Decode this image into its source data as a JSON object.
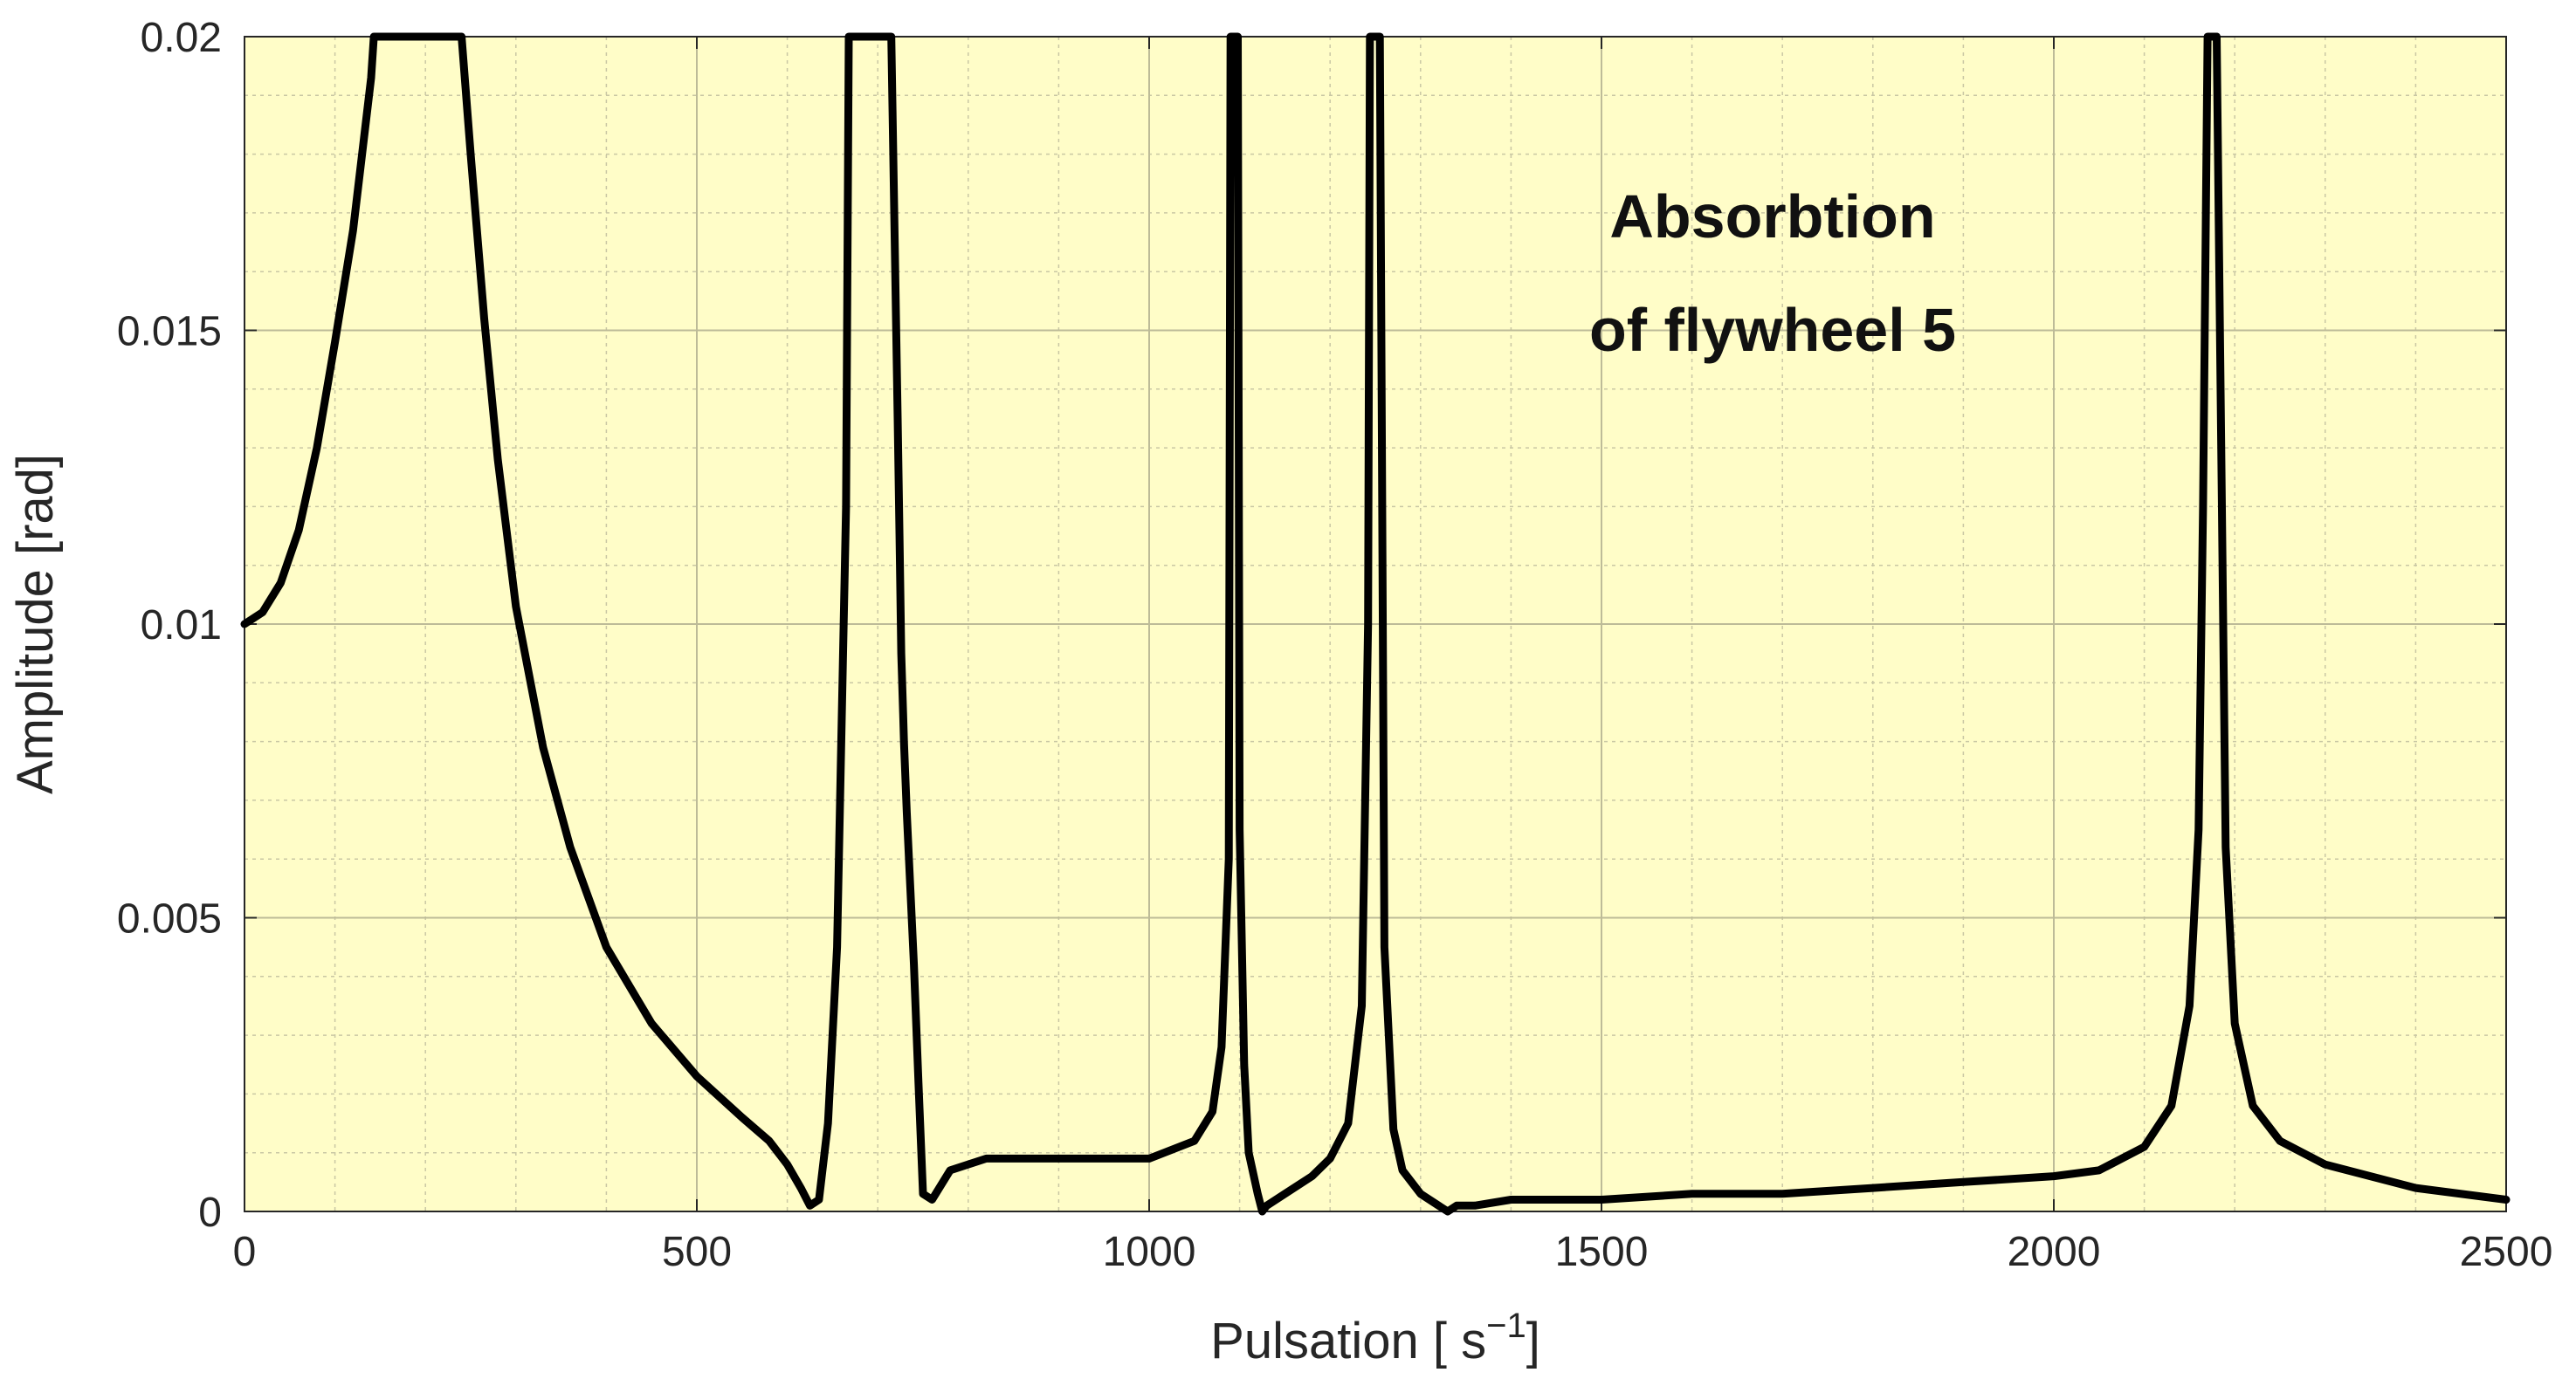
{
  "chart_data": {
    "type": "line",
    "title": "",
    "xlabel": "Pulsation [ s",
    "xlabel_sup": "−1",
    "xlabel_close": "]",
    "ylabel": "Amplitude [rad]",
    "xlim": [
      0,
      2500
    ],
    "ylim": [
      0,
      0.02
    ],
    "x_ticks": [
      0,
      500,
      1000,
      1500,
      2000,
      2500
    ],
    "y_ticks": [
      0,
      0.005,
      0.01,
      0.015,
      0.02
    ],
    "x_tick_labels": [
      "0",
      "500",
      "1000",
      "1500",
      "2000",
      "2500"
    ],
    "y_tick_labels": [
      "0",
      "0.005",
      "0.01",
      "0.015",
      "0.02"
    ],
    "grid": true,
    "minor_grid": true,
    "background_color": "#FFFDC8",
    "line_color": "#000000",
    "annotation_lines": [
      "Absorbtion",
      "of flywheel 5"
    ],
    "series": [
      {
        "x": [
          0,
          20,
          40,
          60,
          80,
          100,
          120,
          140,
          143,
          240,
          250,
          265,
          280,
          300,
          330,
          360,
          400,
          450,
          500,
          550,
          580,
          600,
          615,
          625,
          635,
          645,
          655,
          665,
          668,
          715,
          722,
          724,
          726,
          728,
          729,
          732,
          740,
          745,
          750,
          760,
          780,
          820,
          900,
          1000,
          1050,
          1070,
          1080,
          1088,
          1090,
          1098,
          1100,
          1105,
          1110,
          1120,
          1125,
          1130,
          1150,
          1180,
          1200,
          1220,
          1235,
          1242,
          1244,
          1255,
          1260,
          1270,
          1280,
          1300,
          1320,
          1330,
          1340,
          1360,
          1400,
          1500,
          1600,
          1700,
          1800,
          1900,
          2000,
          2050,
          2100,
          2130,
          2150,
          2160,
          2165,
          2170,
          2180,
          2190,
          2200,
          2220,
          2250,
          2300,
          2400,
          2500
        ],
        "y": [
          0.01,
          0.0102,
          0.0107,
          0.0116,
          0.013,
          0.0148,
          0.0167,
          0.0193,
          0.02,
          0.02,
          0.018,
          0.0152,
          0.0128,
          0.0103,
          0.0079,
          0.0062,
          0.0045,
          0.0032,
          0.0023,
          0.0016,
          0.0012,
          0.0008,
          0.0004,
          0.0001,
          0.0002,
          0.0015,
          0.0045,
          0.012,
          0.02,
          0.02,
          0.0135,
          0.0115,
          0.0095,
          0.0085,
          0.008,
          0.0068,
          0.0042,
          0.0022,
          0.0003,
          0.0002,
          0.0007,
          0.0009,
          0.0009,
          0.0009,
          0.0012,
          0.0017,
          0.0028,
          0.006,
          0.02,
          0.02,
          0.0065,
          0.0025,
          0.001,
          0.0003,
          0.0,
          0.0001,
          0.0003,
          0.0006,
          0.0009,
          0.0015,
          0.0035,
          0.01,
          0.02,
          0.02,
          0.0045,
          0.0014,
          0.0007,
          0.0003,
          0.0001,
          0.0,
          0.0001,
          0.0001,
          0.0002,
          0.0002,
          0.0003,
          0.0003,
          0.0004,
          0.0005,
          0.0006,
          0.0007,
          0.0011,
          0.0018,
          0.0035,
          0.0065,
          0.012,
          0.02,
          0.02,
          0.0062,
          0.0032,
          0.0018,
          0.0012,
          0.0008,
          0.0004,
          0.0002
        ]
      }
    ]
  }
}
